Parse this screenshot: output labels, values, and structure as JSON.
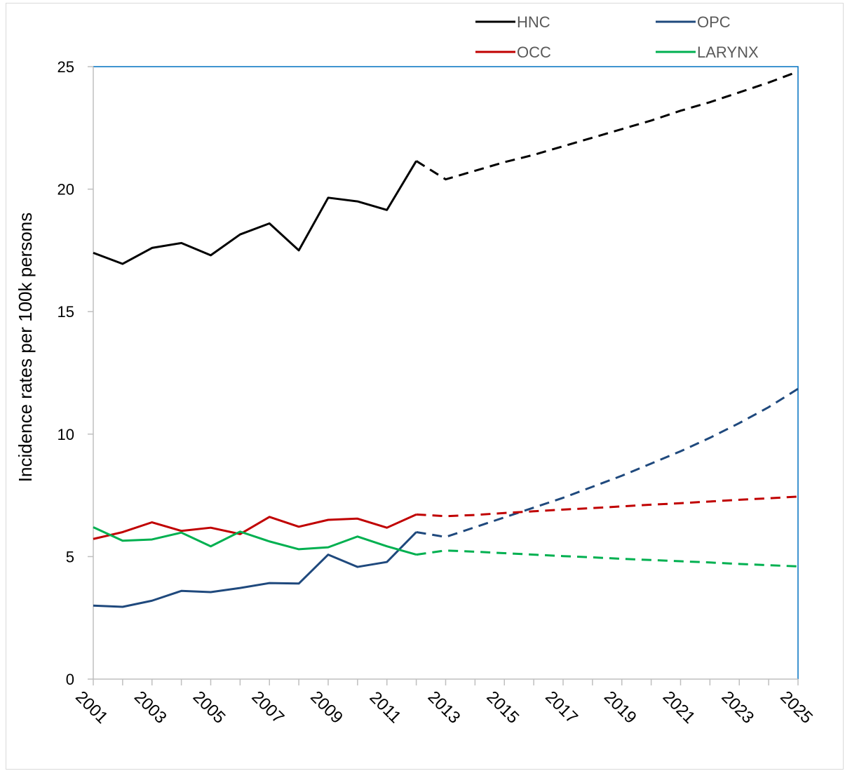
{
  "chart_data": {
    "type": "line",
    "ylabel": "Incidence rates per 100k persons",
    "xlabel": "",
    "ylim": [
      0,
      25
    ],
    "yticks": [
      "0",
      "5",
      "10",
      "15",
      "20",
      "25"
    ],
    "xlim": [
      2001,
      2025
    ],
    "xticks": [
      "2001",
      "2003",
      "2005",
      "2007",
      "2009",
      "2011",
      "2013",
      "2015",
      "2017",
      "2019",
      "2021",
      "2023",
      "2025"
    ],
    "x": [
      2001,
      2002,
      2003,
      2004,
      2005,
      2006,
      2007,
      2008,
      2009,
      2010,
      2011,
      2012,
      2013,
      2014,
      2015,
      2016,
      2017,
      2018,
      2019,
      2020,
      2021,
      2022,
      2023,
      2024,
      2025
    ],
    "observed_through": 2012,
    "grid": false,
    "legend_position": "top-right",
    "series": [
      {
        "name": "HNC",
        "color": "#000000",
        "values": [
          17.4,
          16.95,
          17.6,
          17.8,
          17.3,
          18.15,
          18.6,
          17.5,
          19.65,
          19.5,
          19.15,
          21.15,
          20.4,
          20.75,
          21.1,
          21.4,
          21.75,
          22.1,
          22.45,
          22.8,
          23.2,
          23.55,
          23.95,
          24.35,
          24.8
        ]
      },
      {
        "name": "OPC",
        "color": "#1f497d",
        "values": [
          3.0,
          2.95,
          3.2,
          3.6,
          3.55,
          3.72,
          3.92,
          3.9,
          5.08,
          4.58,
          4.78,
          6.0,
          5.8,
          6.2,
          6.6,
          7.0,
          7.4,
          7.85,
          8.3,
          8.8,
          9.3,
          9.85,
          10.45,
          11.1,
          11.85
        ]
      },
      {
        "name": "OCC",
        "color": "#c00000",
        "values": [
          5.72,
          6.0,
          6.4,
          6.05,
          6.18,
          5.92,
          6.62,
          6.22,
          6.5,
          6.55,
          6.18,
          6.72,
          6.65,
          6.7,
          6.78,
          6.85,
          6.92,
          6.98,
          7.05,
          7.12,
          7.18,
          7.25,
          7.32,
          7.38,
          7.45
        ]
      },
      {
        "name": "LARYNX",
        "color": "#00b050",
        "values": [
          6.2,
          5.65,
          5.7,
          5.98,
          5.42,
          6.02,
          5.62,
          5.3,
          5.38,
          5.82,
          5.42,
          5.08,
          5.25,
          5.2,
          5.14,
          5.08,
          5.02,
          4.97,
          4.91,
          4.86,
          4.81,
          4.76,
          4.7,
          4.65,
          4.6
        ]
      }
    ]
  }
}
